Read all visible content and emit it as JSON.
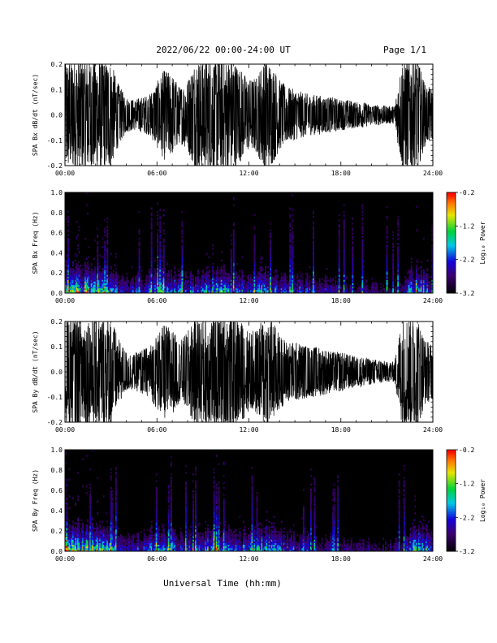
{
  "header": {
    "title": "2022/06/22  00:00-24:00 UT",
    "page": "Page 1/1"
  },
  "footer": {
    "xlabel": "Universal Time (hh:mm)"
  },
  "chart_data": [
    {
      "type": "line",
      "ylabel": "SPA Bx dB/dt (nT/sec)",
      "xlim": [
        0,
        24
      ],
      "ylim": [
        -0.2,
        0.2
      ],
      "x_ticklabels": [
        "00:00",
        "06:00",
        "12:00",
        "18:00",
        "24:00"
      ],
      "y_ticks": [
        -0.2,
        -0.1,
        0.0,
        0.1,
        0.2
      ],
      "y_ticklabels": [
        "-0.2",
        "-0.1",
        "0.0",
        "0.1",
        "0.2"
      ],
      "envelope": {
        "hours": [
          0,
          0.5,
          1,
          1.5,
          2,
          2.5,
          3,
          3.5,
          4,
          4.5,
          5,
          5.5,
          6,
          6.5,
          7,
          7.5,
          8,
          8.5,
          9,
          9.5,
          10,
          10.5,
          11,
          11.5,
          12,
          12.5,
          13,
          13.5,
          14,
          14.5,
          15,
          15.5,
          16,
          16.5,
          17,
          17.5,
          18,
          18.5,
          19,
          19.5,
          20,
          20.5,
          21,
          21.5,
          22,
          22.5,
          23,
          23.5,
          24
        ],
        "amplitude": [
          0.22,
          0.22,
          0.22,
          0.22,
          0.22,
          0.22,
          0.21,
          0.12,
          0.07,
          0.06,
          0.07,
          0.08,
          0.13,
          0.18,
          0.16,
          0.11,
          0.14,
          0.22,
          0.22,
          0.22,
          0.22,
          0.22,
          0.22,
          0.18,
          0.14,
          0.15,
          0.22,
          0.2,
          0.14,
          0.11,
          0.1,
          0.09,
          0.08,
          0.08,
          0.07,
          0.07,
          0.06,
          0.06,
          0.05,
          0.05,
          0.04,
          0.04,
          0.035,
          0.035,
          0.22,
          0.22,
          0.22,
          0.12,
          0.1
        ]
      }
    },
    {
      "type": "heatmap",
      "ylabel": "SPA Bx Freq (Hz)",
      "xlim": [
        0,
        24
      ],
      "ylim": [
        0,
        1.0
      ],
      "x_ticklabels": [
        "00:00",
        "06:00",
        "12:00",
        "18:00",
        "24:00"
      ],
      "y_ticks": [
        0.0,
        0.2,
        0.4,
        0.6,
        0.8,
        1.0
      ],
      "y_ticklabels": [
        "0.0",
        "0.2",
        "0.4",
        "0.6",
        "0.8",
        "1.0"
      ],
      "colorbar": {
        "label": "Log₁₀ Power",
        "range": [
          -3.2,
          -0.2
        ],
        "ticks": [
          -0.2,
          -1.2,
          -2.2,
          -3.2
        ],
        "ticklabels": [
          "-0.2",
          "-1.2",
          "-2.2",
          "-3.2"
        ]
      },
      "activity": {
        "hours": [
          0,
          1,
          2,
          3,
          4,
          5,
          6,
          7,
          8,
          9,
          10,
          11,
          12,
          13,
          14,
          15,
          16,
          17,
          18,
          19,
          20,
          21,
          22,
          23,
          24
        ],
        "level": [
          1.0,
          0.95,
          0.9,
          0.7,
          0.35,
          0.45,
          0.7,
          0.6,
          0.45,
          0.6,
          0.75,
          0.55,
          0.6,
          0.8,
          0.5,
          0.45,
          0.4,
          0.35,
          0.3,
          0.25,
          0.25,
          0.2,
          0.3,
          1.0,
          0.4
        ]
      }
    },
    {
      "type": "line",
      "ylabel": "SPA By dB/dt (nT/sec)",
      "xlim": [
        0,
        24
      ],
      "ylim": [
        -0.2,
        0.2
      ],
      "x_ticklabels": [
        "00:00",
        "06:00",
        "12:00",
        "18:00",
        "24:00"
      ],
      "y_ticks": [
        -0.2,
        -0.1,
        0.0,
        0.1,
        0.2
      ],
      "y_ticklabels": [
        "-0.2",
        "-0.1",
        "0.0",
        "0.1",
        "0.2"
      ],
      "envelope": {
        "hours": [
          0,
          0.5,
          1,
          1.5,
          2,
          2.5,
          3,
          3.5,
          4,
          4.5,
          5,
          5.5,
          6,
          6.5,
          7,
          7.5,
          8,
          8.5,
          9,
          9.5,
          10,
          10.5,
          11,
          11.5,
          12,
          12.5,
          13,
          13.5,
          14,
          14.5,
          15,
          15.5,
          16,
          16.5,
          17,
          17.5,
          18,
          18.5,
          19,
          19.5,
          20,
          20.5,
          21,
          21.5,
          22,
          22.5,
          23,
          23.5,
          24
        ],
        "amplitude": [
          0.22,
          0.22,
          0.22,
          0.22,
          0.22,
          0.22,
          0.22,
          0.13,
          0.08,
          0.07,
          0.09,
          0.1,
          0.15,
          0.19,
          0.17,
          0.12,
          0.16,
          0.22,
          0.22,
          0.22,
          0.22,
          0.22,
          0.22,
          0.2,
          0.16,
          0.17,
          0.22,
          0.21,
          0.15,
          0.12,
          0.12,
          0.11,
          0.1,
          0.1,
          0.09,
          0.08,
          0.08,
          0.07,
          0.06,
          0.06,
          0.05,
          0.05,
          0.04,
          0.04,
          0.22,
          0.22,
          0.22,
          0.13,
          0.11
        ]
      }
    },
    {
      "type": "heatmap",
      "ylabel": "SPA By Freq (Hz)",
      "xlim": [
        0,
        24
      ],
      "ylim": [
        0,
        1.0
      ],
      "x_ticklabels": [
        "00:00",
        "06:00",
        "12:00",
        "18:00",
        "24:00"
      ],
      "y_ticks": [
        0.0,
        0.2,
        0.4,
        0.6,
        0.8,
        1.0
      ],
      "y_ticklabels": [
        "0.0",
        "0.2",
        "0.4",
        "0.6",
        "0.8",
        "1.0"
      ],
      "colorbar": {
        "label": "Log₁₀ Power",
        "range": [
          -3.2,
          -0.2
        ],
        "ticks": [
          -0.2,
          -1.2,
          -2.2,
          -3.2
        ],
        "ticklabels": [
          "-0.2",
          "-1.2",
          "-2.2",
          "-3.2"
        ]
      },
      "activity": {
        "hours": [
          0,
          1,
          2,
          3,
          4,
          5,
          6,
          7,
          8,
          9,
          10,
          11,
          12,
          13,
          14,
          15,
          16,
          17,
          18,
          19,
          20,
          21,
          22,
          23,
          24
        ],
        "level": [
          1.0,
          0.95,
          0.9,
          0.7,
          0.35,
          0.45,
          0.7,
          0.6,
          0.45,
          0.6,
          0.75,
          0.55,
          0.6,
          0.8,
          0.5,
          0.45,
          0.4,
          0.35,
          0.3,
          0.25,
          0.25,
          0.2,
          0.3,
          1.0,
          0.4
        ]
      }
    }
  ]
}
